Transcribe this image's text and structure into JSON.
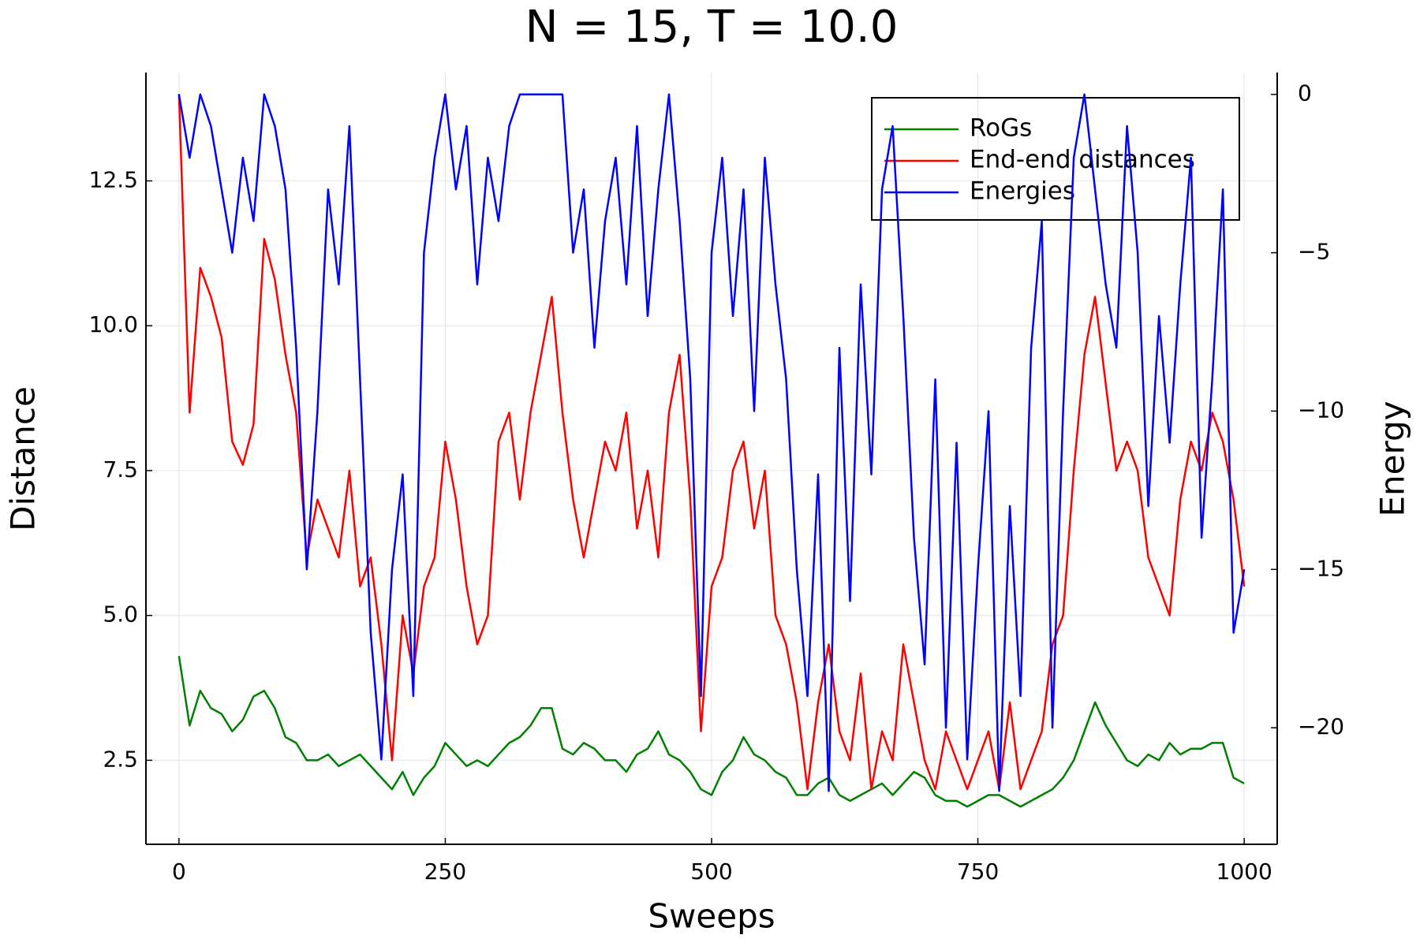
{
  "chart_data": {
    "type": "line",
    "title": "N = 15, T = 10.0",
    "xlabel": "Sweeps",
    "ylabel": "Distance",
    "y2label": "Energy",
    "x": [
      0,
      10,
      20,
      30,
      40,
      50,
      60,
      70,
      80,
      90,
      100,
      110,
      120,
      130,
      140,
      150,
      160,
      170,
      180,
      190,
      200,
      210,
      220,
      230,
      240,
      250,
      260,
      270,
      280,
      290,
      300,
      310,
      320,
      330,
      340,
      350,
      360,
      370,
      380,
      390,
      400,
      410,
      420,
      430,
      440,
      450,
      460,
      470,
      480,
      490,
      500,
      510,
      520,
      530,
      540,
      550,
      560,
      570,
      580,
      590,
      600,
      610,
      620,
      630,
      640,
      650,
      660,
      670,
      680,
      690,
      700,
      710,
      720,
      730,
      740,
      750,
      760,
      770,
      780,
      790,
      800,
      810,
      820,
      830,
      840,
      850,
      860,
      870,
      880,
      890,
      900,
      910,
      920,
      930,
      940,
      950,
      960,
      970,
      980,
      990,
      1000
    ],
    "series": [
      {
        "name": "RoGs",
        "color": "#008000",
        "values": [
          4.3,
          3.1,
          3.7,
          3.4,
          3.3,
          3.0,
          3.2,
          3.6,
          3.7,
          3.4,
          2.9,
          2.8,
          2.5,
          2.5,
          2.6,
          2.4,
          2.5,
          2.6,
          2.4,
          2.2,
          2.0,
          2.3,
          1.9,
          2.2,
          2.4,
          2.8,
          2.6,
          2.4,
          2.5,
          2.4,
          2.6,
          2.8,
          2.9,
          3.1,
          3.4,
          3.4,
          2.7,
          2.6,
          2.8,
          2.7,
          2.5,
          2.5,
          2.3,
          2.6,
          2.7,
          3.0,
          2.6,
          2.5,
          2.3,
          2.0,
          1.9,
          2.3,
          2.5,
          2.9,
          2.6,
          2.5,
          2.3,
          2.2,
          1.9,
          1.9,
          2.1,
          2.2,
          1.9,
          1.8,
          1.9,
          2.0,
          2.1,
          1.9,
          2.1,
          2.3,
          2.2,
          1.9,
          1.8,
          1.8,
          1.7,
          1.8,
          1.9,
          1.9,
          1.8,
          1.7,
          1.8,
          1.9,
          2.0,
          2.2,
          2.5,
          3.0,
          3.5,
          3.1,
          2.8,
          2.5,
          2.4,
          2.6,
          2.5,
          2.8,
          2.6,
          2.7,
          2.7,
          2.8,
          2.8,
          2.2,
          2.1
        ]
      },
      {
        "name": "End-end distances",
        "color": "#ff0000",
        "values": [
          14.0,
          8.5,
          11.0,
          10.5,
          9.8,
          8.0,
          7.6,
          8.3,
          11.5,
          10.8,
          9.5,
          8.5,
          6.0,
          7.0,
          6.5,
          6.0,
          7.5,
          5.5,
          6.0,
          4.5,
          2.5,
          5.0,
          4.0,
          5.5,
          6.0,
          8.0,
          7.0,
          5.5,
          4.5,
          5.0,
          8.0,
          8.5,
          7.0,
          8.5,
          9.5,
          10.5,
          8.5,
          7.0,
          6.0,
          7.0,
          8.0,
          7.5,
          8.5,
          6.5,
          7.5,
          6.0,
          8.5,
          9.5,
          7.0,
          3.0,
          5.5,
          6.0,
          7.5,
          8.0,
          6.5,
          7.5,
          5.0,
          4.5,
          3.5,
          2.0,
          3.5,
          4.5,
          3.0,
          2.5,
          4.0,
          2.0,
          3.0,
          2.5,
          4.5,
          3.5,
          2.5,
          2.0,
          3.0,
          2.5,
          2.0,
          2.5,
          3.0,
          2.0,
          3.5,
          2.0,
          2.5,
          3.0,
          4.5,
          5.0,
          7.5,
          9.5,
          10.5,
          9.0,
          7.5,
          8.0,
          7.5,
          6.0,
          5.5,
          5.0,
          7.0,
          8.0,
          7.5,
          8.5,
          8.0,
          7.0,
          5.5
        ]
      },
      {
        "name": "Energies",
        "color": "#0000ff",
        "axis": "y2",
        "values": [
          0,
          -2,
          0,
          -1,
          -3,
          -5,
          -2,
          -4,
          0,
          -1,
          -3,
          -8,
          -15,
          -10,
          -3,
          -6,
          -1,
          -9,
          -17,
          -21,
          -15,
          -12,
          -19,
          -5,
          -2,
          0,
          -3,
          -1,
          -6,
          -2,
          -4,
          -1,
          0,
          0,
          0,
          0,
          0,
          -5,
          -3,
          -8,
          -4,
          -2,
          -6,
          -1,
          -7,
          -3,
          0,
          -4,
          -9,
          -19,
          -5,
          -2,
          -7,
          -3,
          -10,
          -2,
          -6,
          -9,
          -15,
          -19,
          -12,
          -22,
          -8,
          -16,
          -6,
          -12,
          -3,
          -1,
          -7,
          -14,
          -18,
          -9,
          -20,
          -11,
          -21,
          -15,
          -10,
          -22,
          -13,
          -19,
          -8,
          -4,
          -20,
          -10,
          -2,
          0,
          -3,
          -6,
          -8,
          -1,
          -5,
          -13,
          -7,
          -11,
          -6,
          -2,
          -14,
          -9,
          -3,
          -17,
          -15
        ]
      }
    ],
    "xlim": [
      -31,
      1031
    ],
    "xticks": [
      0,
      250,
      500,
      750,
      1000
    ],
    "ylim": [
      1.05,
      14.37
    ],
    "yticks": [
      2.5,
      {
        "value": 5,
        "label": "5.0"
      },
      7.5,
      {
        "value": 10,
        "label": "10.0"
      },
      12.5
    ],
    "y2lim": [
      -23.68,
      0.69
    ],
    "y2ticks": [
      0,
      {
        "value": -5,
        "label": "−5"
      },
      {
        "value": -10,
        "label": "−10"
      },
      {
        "value": -15,
        "label": "−15"
      },
      {
        "value": -20,
        "label": "−20"
      }
    ],
    "grid": true,
    "legend": "top-right"
  }
}
